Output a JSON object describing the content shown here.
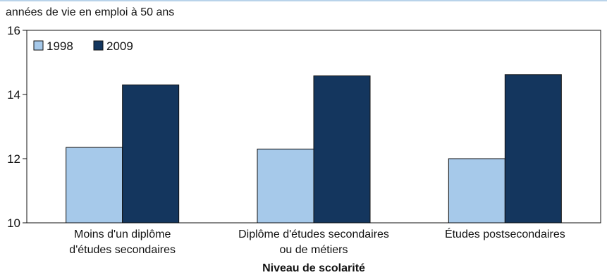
{
  "chart_data": {
    "type": "bar",
    "title": "",
    "ylabel": "années de vie en emploi à 50 ans",
    "xlabel": "Niveau de scolarité",
    "ylim": [
      10,
      16
    ],
    "yticks": [
      "10",
      "12",
      "14",
      "16"
    ],
    "categories": [
      [
        "Moins d'un diplôme",
        "d'études secondaires"
      ],
      [
        "Diplôme d'études secondaires",
        "ou de métiers"
      ],
      [
        "Études postsecondaires"
      ]
    ],
    "series": [
      {
        "name": "1998",
        "color": "#a6c9ea",
        "values": [
          12.35,
          12.3,
          12.0
        ]
      },
      {
        "name": "2009",
        "color": "#14365e",
        "values": [
          14.3,
          14.58,
          14.62
        ]
      }
    ],
    "legend_position": "top-left",
    "grid": false
  }
}
